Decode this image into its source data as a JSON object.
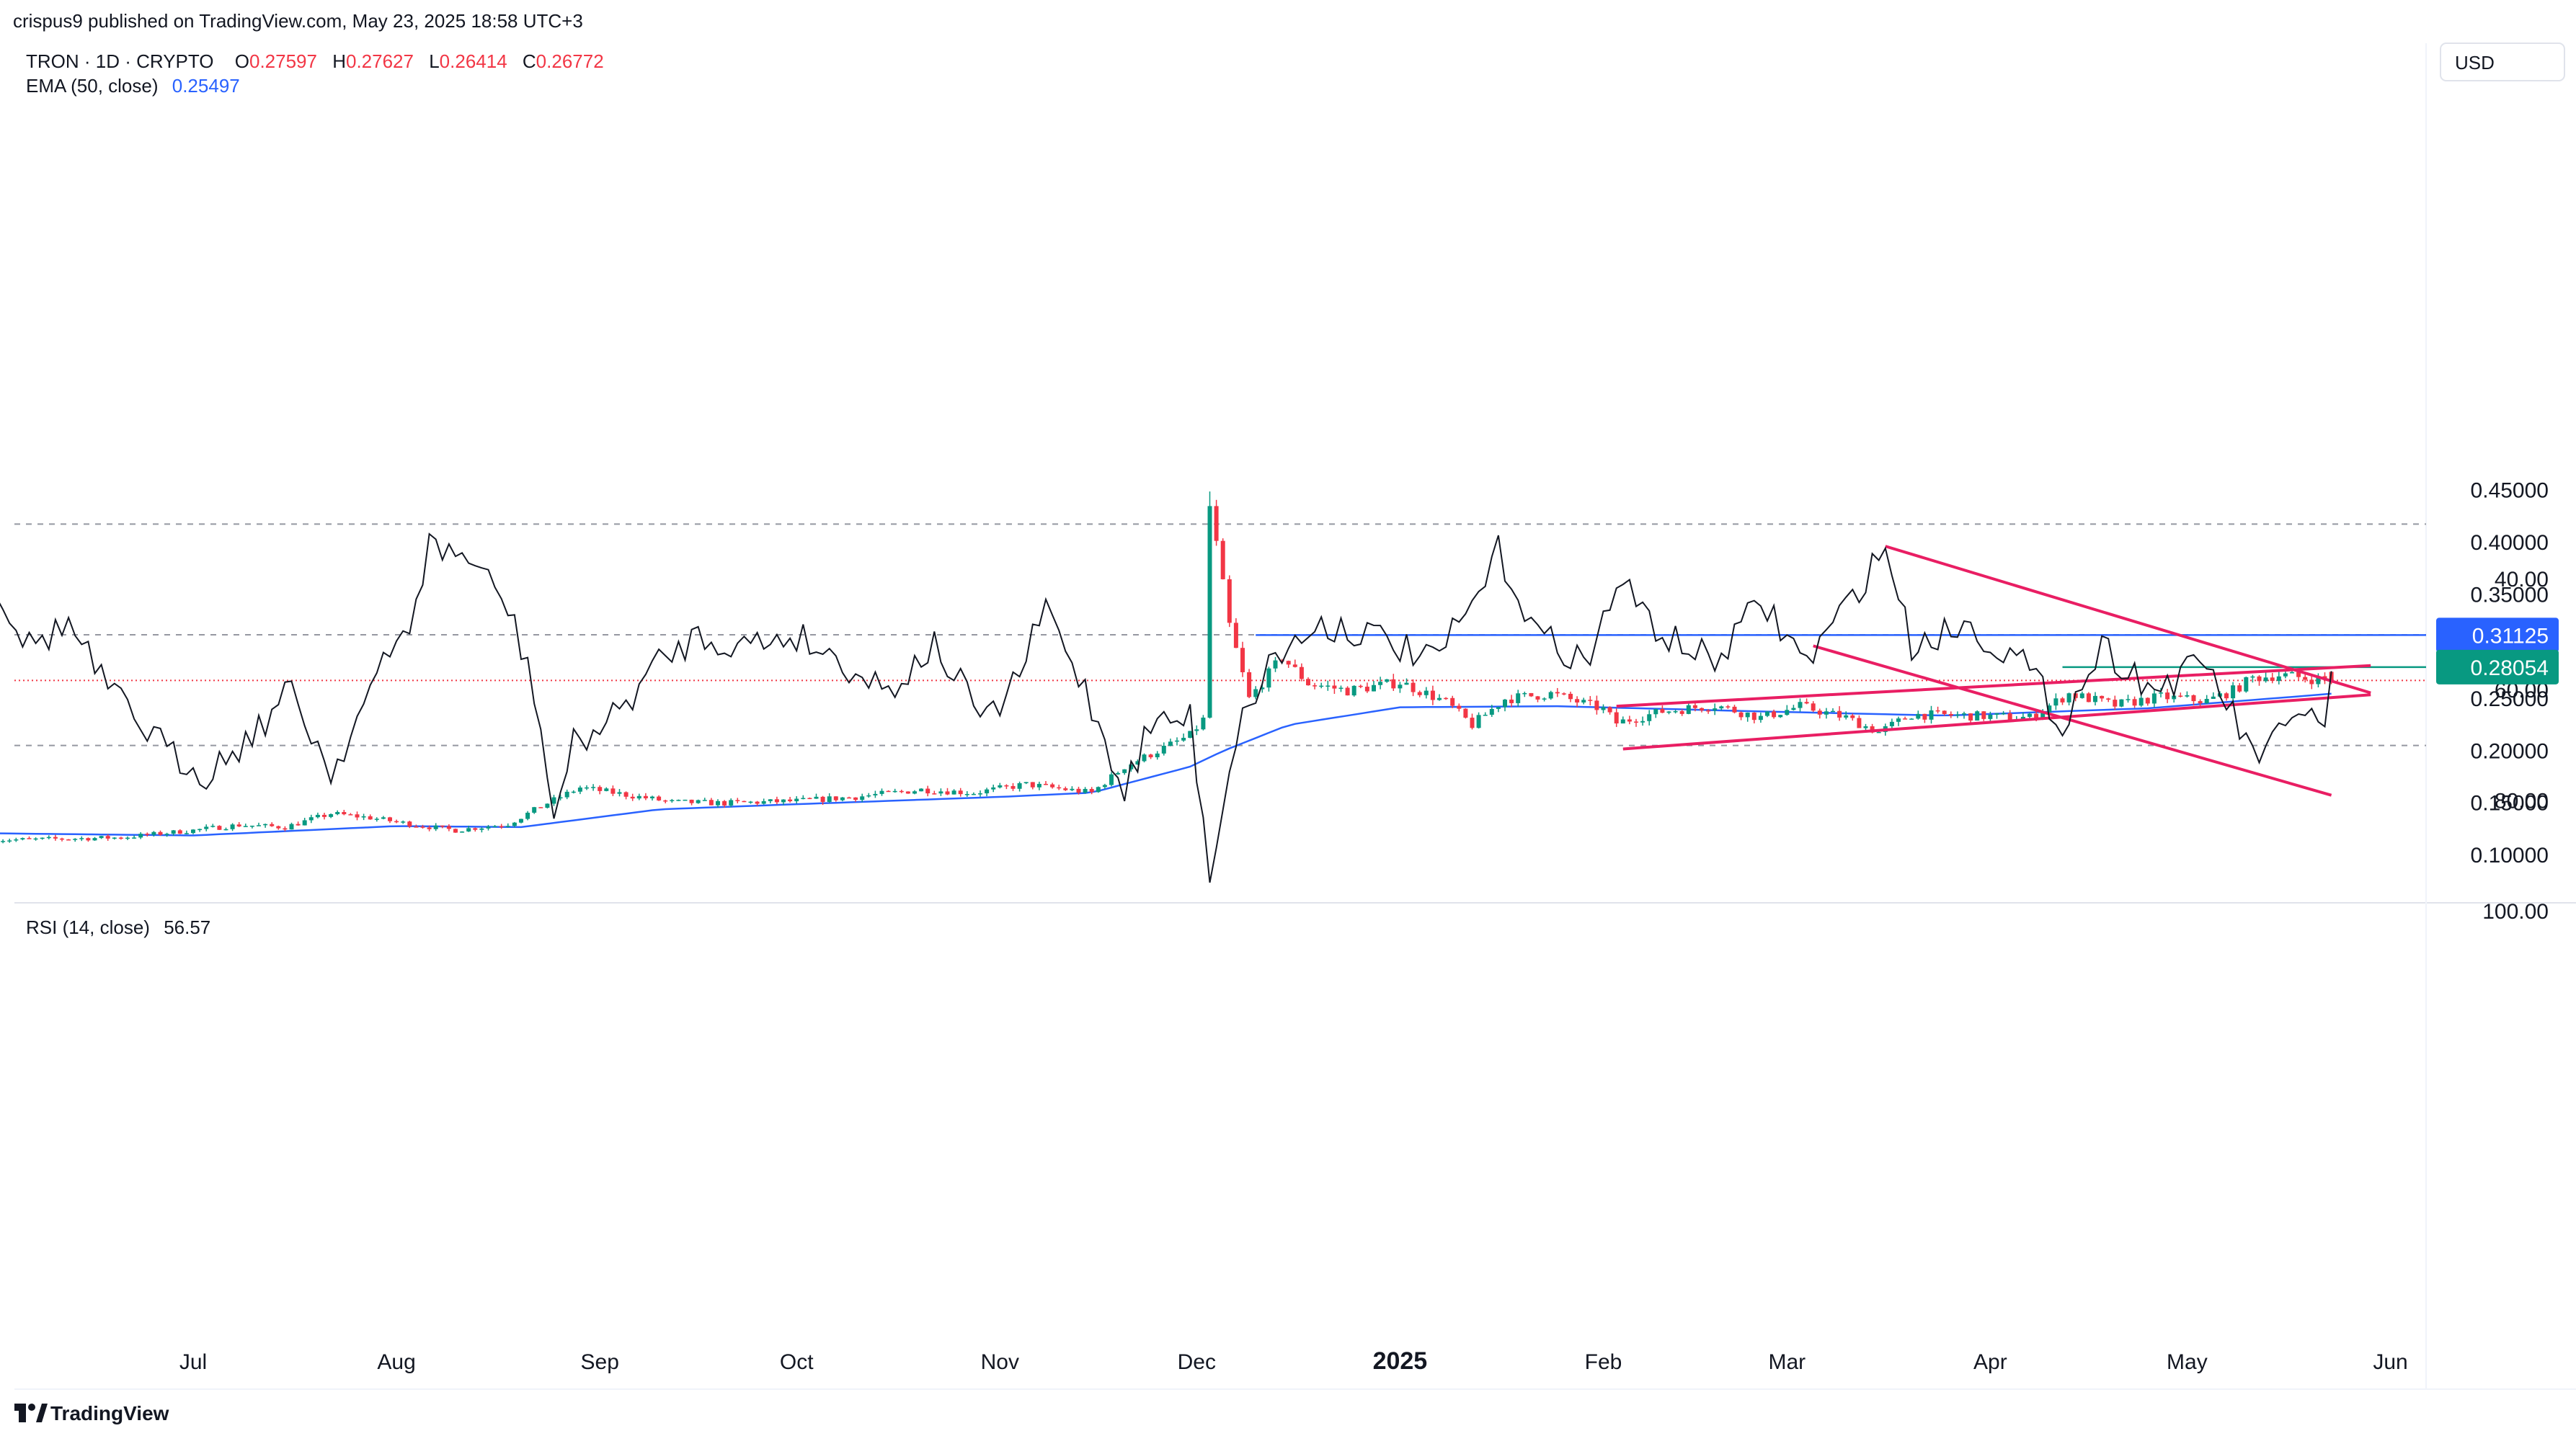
{
  "header": {
    "published": "crispus9 published on TradingView.com, May 23, 2025 18:58 UTC+3"
  },
  "symbol": {
    "title": "TRON · 1D · CRYPTO",
    "o_label": "O",
    "o": "0.27597",
    "h_label": "H",
    "h": "0.27627",
    "l_label": "L",
    "l": "0.26414",
    "c_label": "C",
    "c": "0.26772"
  },
  "ema": {
    "label": "EMA (50, close)",
    "value": "0.25497"
  },
  "rsi_header": {
    "label": "RSI (14, close)",
    "value": "56.57"
  },
  "currency": "USD",
  "footer": {
    "brand": "TradingView"
  },
  "colors": {
    "up": "#089981",
    "down": "#f23645",
    "ema": "#2962ff",
    "trend": "#e91e63",
    "rsi": "#131722",
    "resistance": "#2962ff",
    "support_level": "#089981",
    "grid": "#9598a1"
  },
  "chart_data": [
    {
      "type": "candlestick",
      "title": "TRON · 1D · CRYPTO",
      "ylabel": "USD",
      "ylim": [
        0.08,
        0.465
      ],
      "y_ticks": [
        0.45,
        0.4,
        0.35,
        0.3,
        0.25,
        0.2,
        0.15,
        0.1
      ],
      "y_tick_labels": [
        "0.45000",
        "0.40000",
        "0.35000",
        "0.30000",
        "0.25000",
        "0.20000",
        "0.15000",
        "0.10000"
      ],
      "x_ticks": [
        "Jul",
        "Aug",
        "Sep",
        "Oct",
        "Nov",
        "Dec",
        "2025",
        "Feb",
        "Mar",
        "Apr",
        "May",
        "Jun"
      ],
      "close_path": [
        [
          "2024-06-05",
          0.115
        ],
        [
          "2024-06-20",
          0.117
        ],
        [
          "2024-07-01",
          0.124
        ],
        [
          "2024-07-08",
          0.129
        ],
        [
          "2024-07-15",
          0.127
        ],
        [
          "2024-07-22",
          0.14
        ],
        [
          "2024-07-28",
          0.136
        ],
        [
          "2024-08-05",
          0.128
        ],
        [
          "2024-08-10",
          0.124
        ],
        [
          "2024-08-18",
          0.13
        ],
        [
          "2024-08-24",
          0.15
        ],
        [
          "2024-08-29",
          0.165
        ],
        [
          "2024-09-05",
          0.158
        ],
        [
          "2024-09-12",
          0.151
        ],
        [
          "2024-09-20",
          0.15
        ],
        [
          "2024-10-01",
          0.152
        ],
        [
          "2024-10-10",
          0.156
        ],
        [
          "2024-10-20",
          0.163
        ],
        [
          "2024-10-28",
          0.16
        ],
        [
          "2024-11-05",
          0.168
        ],
        [
          "2024-11-15",
          0.16
        ],
        [
          "2024-11-20",
          0.185
        ],
        [
          "2024-11-25",
          0.2
        ],
        [
          "2024-11-30",
          0.215
        ],
        [
          "2024-12-02",
          0.23
        ],
        [
          "2024-12-03",
          0.435
        ],
        [
          "2024-12-06",
          0.32
        ],
        [
          "2024-12-09",
          0.25
        ],
        [
          "2024-12-14",
          0.29
        ],
        [
          "2024-12-18",
          0.265
        ],
        [
          "2024-12-24",
          0.258
        ],
        [
          "2025-01-01",
          0.266
        ],
        [
          "2025-01-08",
          0.247
        ],
        [
          "2025-01-12",
          0.225
        ],
        [
          "2025-01-17",
          0.25
        ],
        [
          "2025-01-24",
          0.255
        ],
        [
          "2025-02-01",
          0.24
        ],
        [
          "2025-02-03",
          0.227
        ],
        [
          "2025-02-10",
          0.238
        ],
        [
          "2025-02-18",
          0.244
        ],
        [
          "2025-02-25",
          0.232
        ],
        [
          "2025-03-03",
          0.243
        ],
        [
          "2025-03-10",
          0.232
        ],
        [
          "2025-03-15",
          0.218
        ],
        [
          "2025-03-20",
          0.235
        ],
        [
          "2025-03-28",
          0.234
        ],
        [
          "2025-04-07",
          0.232
        ],
        [
          "2025-04-13",
          0.255
        ],
        [
          "2025-04-20",
          0.244
        ],
        [
          "2025-04-27",
          0.252
        ],
        [
          "2025-05-04",
          0.248
        ],
        [
          "2025-05-08",
          0.258
        ],
        [
          "2025-05-11",
          0.27
        ],
        [
          "2025-05-15",
          0.273
        ],
        [
          "2025-05-19",
          0.27
        ],
        [
          "2025-05-23",
          0.26772
        ]
      ],
      "december_spike": {
        "date": "2024-12-03",
        "high": 0.449,
        "close": 0.435
      },
      "ema50_path": [
        [
          "2024-06-01",
          0.121
        ],
        [
          "2024-07-01",
          0.119
        ],
        [
          "2024-08-01",
          0.128
        ],
        [
          "2024-08-20",
          0.127
        ],
        [
          "2024-09-10",
          0.144
        ],
        [
          "2024-10-01",
          0.149
        ],
        [
          "2024-11-01",
          0.156
        ],
        [
          "2024-11-15",
          0.16
        ],
        [
          "2024-11-30",
          0.185
        ],
        [
          "2024-12-05",
          0.2
        ],
        [
          "2024-12-15",
          0.225
        ],
        [
          "2025-01-01",
          0.242
        ],
        [
          "2025-01-25",
          0.243
        ],
        [
          "2025-02-25",
          0.238
        ],
        [
          "2025-03-25",
          0.234
        ],
        [
          "2025-04-25",
          0.241
        ],
        [
          "2025-05-23",
          0.25497
        ]
      ],
      "resistance_level": {
        "value": 0.31125,
        "label": "0.31125",
        "start": "2024-12-10"
      },
      "support_level": {
        "value": 0.28054,
        "label": "0.28054",
        "start": "2025-04-12"
      },
      "last_price": 0.26772,
      "channel_upper": [
        [
          "2025-02-03",
          0.243
        ],
        [
          "2025-05-29",
          0.282
        ]
      ],
      "channel_lower": [
        [
          "2025-02-04",
          0.202
        ],
        [
          "2025-05-29",
          0.254
        ]
      ]
    },
    {
      "type": "line",
      "title": "RSI (14, close)",
      "ylim": [
        27,
        100
      ],
      "y_ticks": [
        100,
        80,
        60,
        40
      ],
      "y_tick_labels": [
        "100.00",
        "80.00",
        "60.00",
        "40.00"
      ],
      "levels": [
        70,
        50,
        30
      ],
      "rsi_path": [
        [
          "2024-06-01",
          42
        ],
        [
          "2024-06-06",
          52
        ],
        [
          "2024-06-12",
          48
        ],
        [
          "2024-06-18",
          60
        ],
        [
          "2024-06-28",
          72
        ],
        [
          "2024-07-03",
          75
        ],
        [
          "2024-07-10",
          68
        ],
        [
          "2024-07-16",
          60
        ],
        [
          "2024-07-22",
          75
        ],
        [
          "2024-07-28",
          60
        ],
        [
          "2024-08-03",
          48
        ],
        [
          "2024-08-06",
          34
        ],
        [
          "2024-08-12",
          36
        ],
        [
          "2024-08-18",
          45
        ],
        [
          "2024-08-22",
          60
        ],
        [
          "2024-08-25",
          83
        ],
        [
          "2024-08-28",
          70
        ],
        [
          "2024-09-03",
          65
        ],
        [
          "2024-09-10",
          55
        ],
        [
          "2024-09-16",
          50
        ],
        [
          "2024-09-22",
          52
        ],
        [
          "2024-10-01",
          50
        ],
        [
          "2024-10-08",
          55
        ],
        [
          "2024-10-15",
          60
        ],
        [
          "2024-10-22",
          52
        ],
        [
          "2024-10-30",
          66
        ],
        [
          "2024-11-04",
          57
        ],
        [
          "2024-11-08",
          45
        ],
        [
          "2024-11-14",
          60
        ],
        [
          "2024-11-20",
          78
        ],
        [
          "2024-11-24",
          66
        ],
        [
          "2024-11-30",
          65
        ],
        [
          "2024-12-03",
          93
        ],
        [
          "2024-12-07",
          68
        ],
        [
          "2024-12-12",
          55
        ],
        [
          "2024-12-20",
          48
        ],
        [
          "2024-12-28",
          50
        ],
        [
          "2025-01-06",
          55
        ],
        [
          "2025-01-12",
          45
        ],
        [
          "2025-01-16",
          35
        ],
        [
          "2025-01-22",
          50
        ],
        [
          "2025-01-30",
          55
        ],
        [
          "2025-02-03",
          40
        ],
        [
          "2025-02-10",
          50
        ],
        [
          "2025-02-18",
          55
        ],
        [
          "2025-02-25",
          44
        ],
        [
          "2025-03-04",
          55
        ],
        [
          "2025-03-10",
          45
        ],
        [
          "2025-03-16",
          34
        ],
        [
          "2025-03-20",
          52
        ],
        [
          "2025-03-28",
          48
        ],
        [
          "2025-04-06",
          55
        ],
        [
          "2025-04-12",
          66
        ],
        [
          "2025-04-18",
          52
        ],
        [
          "2025-04-26",
          60
        ],
        [
          "2025-05-04",
          55
        ],
        [
          "2025-05-11",
          72
        ],
        [
          "2025-05-16",
          68
        ],
        [
          "2025-05-20",
          62
        ],
        [
          "2025-05-22",
          68
        ],
        [
          "2025-05-23",
          56.57
        ]
      ],
      "channel_upper": [
        [
          "2025-03-05",
          52
        ],
        [
          "2025-05-23",
          79
        ]
      ],
      "channel_lower": [
        [
          "2025-03-16",
          34
        ],
        [
          "2025-05-29",
          60.5
        ]
      ]
    }
  ]
}
